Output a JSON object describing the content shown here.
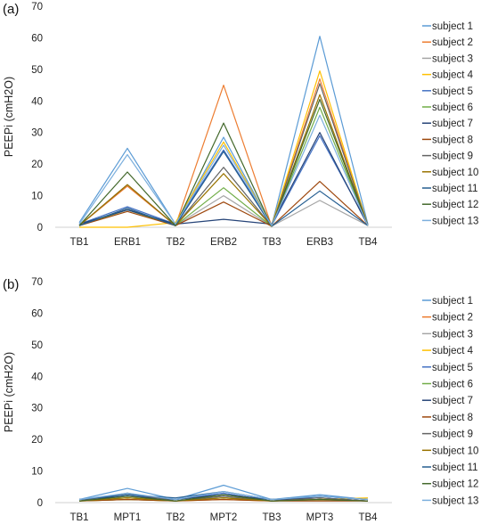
{
  "colors": [
    "#5B9BD5",
    "#ED7D31",
    "#A5A5A5",
    "#FFC000",
    "#4472C4",
    "#70AD47",
    "#264478",
    "#9E480E",
    "#636363",
    "#997300",
    "#255E91",
    "#43682B",
    "#7CAFDD"
  ],
  "chart_data": [
    {
      "type": "line",
      "panel_label": "(a)",
      "ylabel": "PEEPi (cmH2O)",
      "ylim": [
        0,
        70
      ],
      "yticks": [
        "0",
        "10",
        "20",
        "30",
        "40",
        "50",
        "60",
        "70"
      ],
      "grid": false,
      "legend": "right",
      "categories": [
        "TB1",
        "ERB1",
        "TB2",
        "ERB2",
        "TB3",
        "ERB3",
        "TB4"
      ],
      "series": [
        {
          "name": "subject 1",
          "values": [
            1.5,
            25.0,
            1.0,
            28.5,
            0.5,
            60.5,
            1.0
          ]
        },
        {
          "name": "subject 2",
          "values": [
            0.5,
            13.0,
            0.5,
            45.0,
            0.3,
            47.0,
            0.5
          ]
        },
        {
          "name": "subject 3",
          "values": [
            0.5,
            6.0,
            0.5,
            10.0,
            0.3,
            8.5,
            0.5
          ]
        },
        {
          "name": "subject 4",
          "values": [
            0.0,
            0.0,
            1.5,
            27.0,
            0.5,
            49.5,
            0.5
          ]
        },
        {
          "name": "subject 5",
          "values": [
            1.0,
            6.5,
            1.0,
            24.5,
            0.5,
            29.0,
            1.0
          ]
        },
        {
          "name": "subject 6",
          "values": [
            0.5,
            5.5,
            0.5,
            12.5,
            0.3,
            38.0,
            0.5
          ]
        },
        {
          "name": "subject 7",
          "values": [
            1.0,
            5.5,
            1.0,
            2.5,
            1.0,
            30.0,
            0.5
          ]
        },
        {
          "name": "subject 8",
          "values": [
            0.5,
            5.0,
            0.5,
            8.0,
            0.3,
            14.5,
            0.5
          ]
        },
        {
          "name": "subject 9",
          "values": [
            0.5,
            13.5,
            0.5,
            19.0,
            0.3,
            45.5,
            0.5
          ]
        },
        {
          "name": "subject 10",
          "values": [
            0.5,
            13.5,
            0.5,
            17.0,
            0.3,
            42.0,
            0.5
          ]
        },
        {
          "name": "subject 11",
          "values": [
            0.5,
            6.0,
            0.5,
            24.0,
            0.3,
            11.5,
            0.5
          ]
        },
        {
          "name": "subject 12",
          "values": [
            0.5,
            17.5,
            0.5,
            33.0,
            0.3,
            40.5,
            0.5
          ]
        },
        {
          "name": "subject 13",
          "values": [
            1.0,
            23.0,
            1.0,
            26.0,
            0.5,
            35.5,
            0.5
          ]
        }
      ]
    },
    {
      "type": "line",
      "panel_label": "(b)",
      "ylabel": "PEEPi (cmH2O)",
      "ylim": [
        0,
        70
      ],
      "yticks": [
        "0",
        "10",
        "20",
        "30",
        "40",
        "50",
        "60",
        "70"
      ],
      "grid": false,
      "legend": "right",
      "categories": [
        "TB1",
        "MPT1",
        "TB2",
        "MPT2",
        "TB3",
        "MPT3",
        "TB4"
      ],
      "series": [
        {
          "name": "subject 1",
          "values": [
            1.0,
            4.5,
            1.0,
            5.5,
            1.0,
            2.5,
            1.0
          ]
        },
        {
          "name": "subject 2",
          "values": [
            0.5,
            1.0,
            0.5,
            1.0,
            0.5,
            1.0,
            0.5
          ]
        },
        {
          "name": "subject 3",
          "values": [
            0.5,
            1.5,
            0.5,
            2.0,
            0.5,
            1.5,
            0.5
          ]
        },
        {
          "name": "subject 4",
          "values": [
            0.5,
            1.5,
            0.5,
            1.5,
            0.5,
            1.0,
            1.5
          ]
        },
        {
          "name": "subject 5",
          "values": [
            1.0,
            2.5,
            1.0,
            3.0,
            0.5,
            2.0,
            1.0
          ]
        },
        {
          "name": "subject 6",
          "values": [
            0.5,
            1.0,
            0.5,
            1.5,
            0.5,
            1.0,
            0.5
          ]
        },
        {
          "name": "subject 7",
          "values": [
            1.0,
            2.0,
            1.0,
            2.5,
            1.0,
            1.5,
            0.5
          ]
        },
        {
          "name": "subject 8",
          "values": [
            0.5,
            1.0,
            0.5,
            1.0,
            0.5,
            0.5,
            0.5
          ]
        },
        {
          "name": "subject 9",
          "values": [
            0.5,
            3.0,
            0.5,
            2.0,
            0.5,
            1.5,
            0.5
          ]
        },
        {
          "name": "subject 10",
          "values": [
            0.5,
            1.5,
            0.5,
            1.5,
            0.5,
            1.0,
            0.5
          ]
        },
        {
          "name": "subject 11",
          "values": [
            1.0,
            2.5,
            1.5,
            3.5,
            1.0,
            2.0,
            1.0
          ]
        },
        {
          "name": "subject 12",
          "values": [
            0.5,
            2.0,
            0.5,
            2.5,
            0.5,
            1.0,
            0.5
          ]
        },
        {
          "name": "subject 13",
          "values": [
            1.0,
            3.0,
            1.0,
            3.5,
            1.0,
            2.0,
            1.0
          ]
        }
      ]
    }
  ]
}
